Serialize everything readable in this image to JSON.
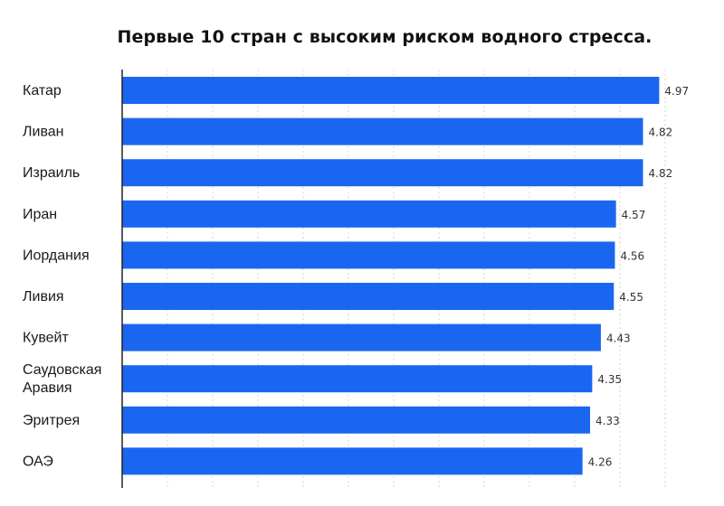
{
  "chart_data": {
    "type": "bar",
    "orientation": "horizontal",
    "title": "Первые 10 стран с высоким риском водного стресса.",
    "categories": [
      [
        "Катар"
      ],
      [
        "Ливан"
      ],
      [
        "Израиль"
      ],
      [
        "Иран"
      ],
      [
        "Иордания"
      ],
      [
        "Ливия"
      ],
      [
        "Кувейт"
      ],
      [
        "Саудовская",
        "Аравия"
      ],
      [
        "Эритрея"
      ],
      [
        "ОАЭ"
      ]
    ],
    "values": [
      4.97,
      4.82,
      4.82,
      4.57,
      4.56,
      4.55,
      4.43,
      4.35,
      4.33,
      4.26
    ],
    "value_labels": [
      "4.97",
      "4.82",
      "4.82",
      "4.57",
      "4.56",
      "4.55",
      "4.43",
      "4.35",
      "4.33",
      "4.26"
    ],
    "xlim": [
      0,
      5
    ],
    "grid": true,
    "bar_color": "#1a66f0",
    "grid_color": "#d4d4d4",
    "axis_color": "#222222"
  }
}
